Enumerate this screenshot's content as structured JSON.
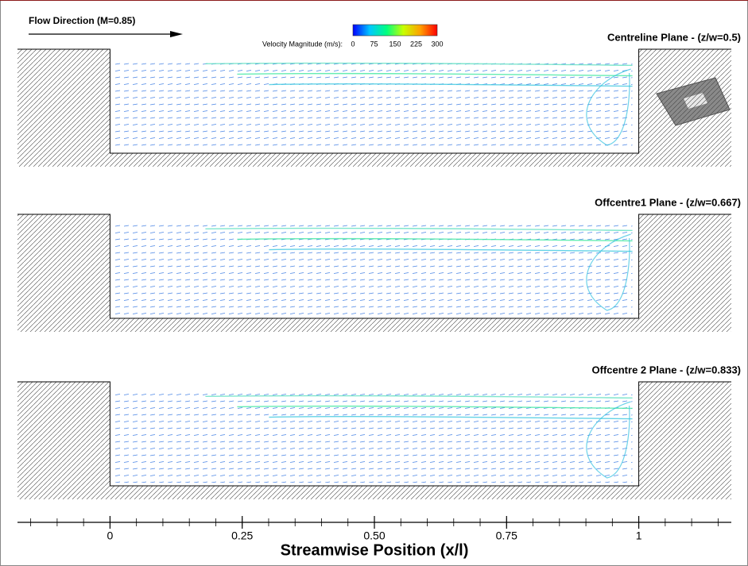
{
  "chart_data": {
    "type": "vector-field",
    "annotation": "Flow Direction (M=0.85)",
    "colorbar": {
      "label": "Velocity Magnitude (m/s):",
      "lim": [
        0,
        300
      ],
      "ticks": [
        0,
        75,
        150,
        225,
        300
      ],
      "colors": [
        "#0000ff",
        "#00c8ff",
        "#00ff80",
        "#c8ff00",
        "#ffa000",
        "#ff0000"
      ]
    },
    "panels": [
      {
        "title": "Centreline Plane - (z/w=0.5)"
      },
      {
        "title": "Offcentre1 Plane - (z/w=0.667)"
      },
      {
        "title": "Offcentre 2 Plane - (z/w=0.833)"
      }
    ],
    "xlabel": "Streamwise Position (x/l)",
    "xlim": [
      -0.175,
      1.175
    ],
    "xticks": [
      0,
      0.25,
      {
        "value": 0.5,
        "label": "0.50"
      },
      0.75,
      1
    ]
  }
}
